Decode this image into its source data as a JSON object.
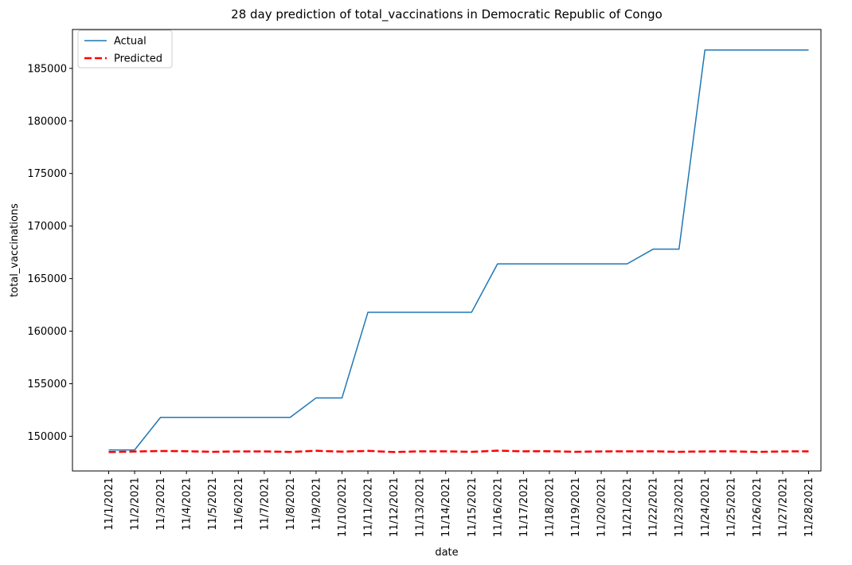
{
  "chart_data": {
    "type": "line",
    "title": "28 day prediction of total_vaccinations in Democratic Republic of Congo",
    "xlabel": "date",
    "ylabel": "total_vaccinations",
    "categories": [
      "11/1/2021",
      "11/2/2021",
      "11/3/2021",
      "11/4/2021",
      "11/5/2021",
      "11/6/2021",
      "11/7/2021",
      "11/8/2021",
      "11/9/2021",
      "11/10/2021",
      "11/11/2021",
      "11/12/2021",
      "11/13/2021",
      "11/14/2021",
      "11/15/2021",
      "11/16/2021",
      "11/17/2021",
      "11/18/2021",
      "11/19/2021",
      "11/20/2021",
      "11/21/2021",
      "11/22/2021",
      "11/23/2021",
      "11/24/2021",
      "11/25/2021",
      "11/26/2021",
      "11/27/2021",
      "11/28/2021"
    ],
    "ylim": [
      146700,
      188700
    ],
    "yticks": [
      150000,
      155000,
      160000,
      165000,
      170000,
      175000,
      180000,
      185000
    ],
    "grid": false,
    "legend_position": "top-left",
    "series": [
      {
        "name": "Actual",
        "color": "#1f77b4",
        "style": "solid",
        "values": [
          148700,
          148700,
          151800,
          151800,
          151800,
          151800,
          151800,
          151800,
          153650,
          153650,
          161800,
          161800,
          161800,
          161800,
          161800,
          166400,
          166400,
          166400,
          166400,
          166400,
          166400,
          167800,
          167800,
          186750,
          186750,
          186750,
          186750,
          186750
        ]
      },
      {
        "name": "Predicted",
        "color": "#ff0000",
        "style": "dashed",
        "values": [
          148500,
          148550,
          148600,
          148580,
          148520,
          148560,
          148560,
          148510,
          148620,
          148540,
          148610,
          148500,
          148570,
          148570,
          148520,
          148630,
          148570,
          148580,
          148520,
          148560,
          148570,
          148570,
          148520,
          148560,
          148570,
          148510,
          148560,
          148570
        ]
      }
    ]
  }
}
